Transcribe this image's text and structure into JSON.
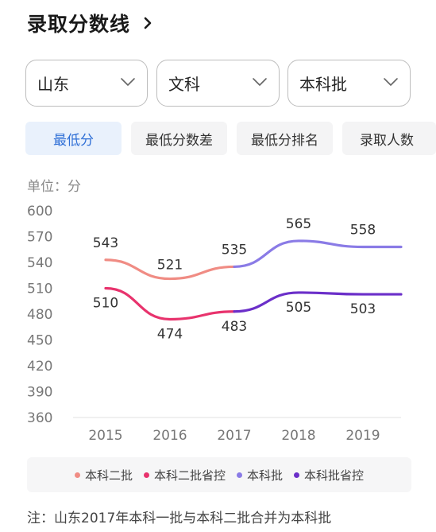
{
  "header": {
    "title": "录取分数线"
  },
  "filters": [
    {
      "label": "山东"
    },
    {
      "label": "文科"
    },
    {
      "label": "本科批"
    }
  ],
  "tabs": [
    {
      "label": "最低分",
      "active": true
    },
    {
      "label": "最低分数差",
      "active": false
    },
    {
      "label": "最低分排名",
      "active": false
    },
    {
      "label": "录取人数",
      "active": false
    }
  ],
  "unit_label": "单位：分",
  "chart_data": {
    "type": "line",
    "x": [
      "2015",
      "2016",
      "2017",
      "2018",
      "2019"
    ],
    "ylim": [
      360,
      600
    ],
    "yticks": [
      600,
      570,
      540,
      510,
      480,
      450,
      420,
      390,
      360
    ],
    "grid": false,
    "legend_position": "bottom",
    "series": [
      {
        "name": "本科二批",
        "color": "#f08c84",
        "points": [
          [
            0,
            543
          ],
          [
            1,
            521
          ],
          [
            2,
            535
          ]
        ],
        "labels": [
          "543",
          "521",
          "535"
        ]
      },
      {
        "name": "本科二批省控",
        "color": "#e8336d",
        "points": [
          [
            0,
            510
          ],
          [
            1,
            474
          ],
          [
            2,
            483
          ]
        ],
        "labels": [
          "510",
          "474",
          "483"
        ]
      },
      {
        "name": "本科批",
        "color": "#8a7be6",
        "points": [
          [
            2,
            535
          ],
          [
            3,
            565
          ],
          [
            4,
            558
          ]
        ],
        "labels": [
          "",
          "565",
          "558"
        ]
      },
      {
        "name": "本科批省控",
        "color": "#6b2fc9",
        "points": [
          [
            2,
            483
          ],
          [
            3,
            505
          ],
          [
            4,
            503
          ]
        ],
        "labels": [
          "",
          "505",
          "503"
        ]
      }
    ]
  },
  "note": "注：山东2017年本科一批与本科二批合并为本科批",
  "colors": {
    "accent": "#2f6fd6",
    "tab_active_bg": "#e9f1fc"
  }
}
